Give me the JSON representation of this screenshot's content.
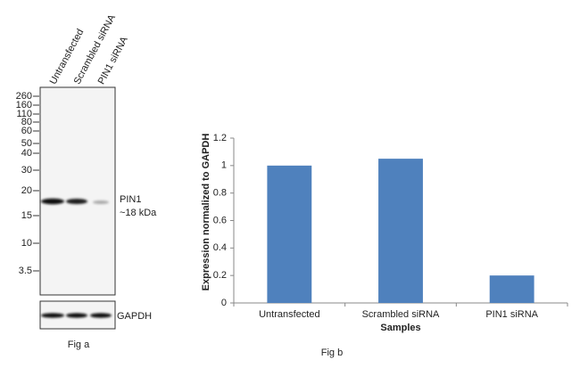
{
  "blot": {
    "lanes": [
      "Untransfected",
      "Scrambled siRNA",
      "PIN1 siRNA"
    ],
    "markers": [
      "260",
      "160",
      "110",
      "80",
      "60",
      "50",
      "40",
      "30",
      "20",
      "15",
      "10",
      "3.5"
    ],
    "band_label": "PIN1",
    "band_size": "~18 kDa",
    "control_label": "GAPDH",
    "caption": "Fig a"
  },
  "chart_data": {
    "type": "bar",
    "caption": "Fig b",
    "x_label": "Samples",
    "y_label": "Expression  normalized to GAPDH",
    "categories": [
      "Untransfected",
      "Scrambled siRNA",
      "PIN1 siRNA"
    ],
    "values": [
      1,
      1.05,
      0.2
    ],
    "color": "#4f81bd",
    "ylim": [
      0,
      1.2
    ],
    "yticks": [
      0,
      0.2,
      0.4,
      0.6,
      0.8,
      1,
      1.2
    ],
    "grid": false
  }
}
